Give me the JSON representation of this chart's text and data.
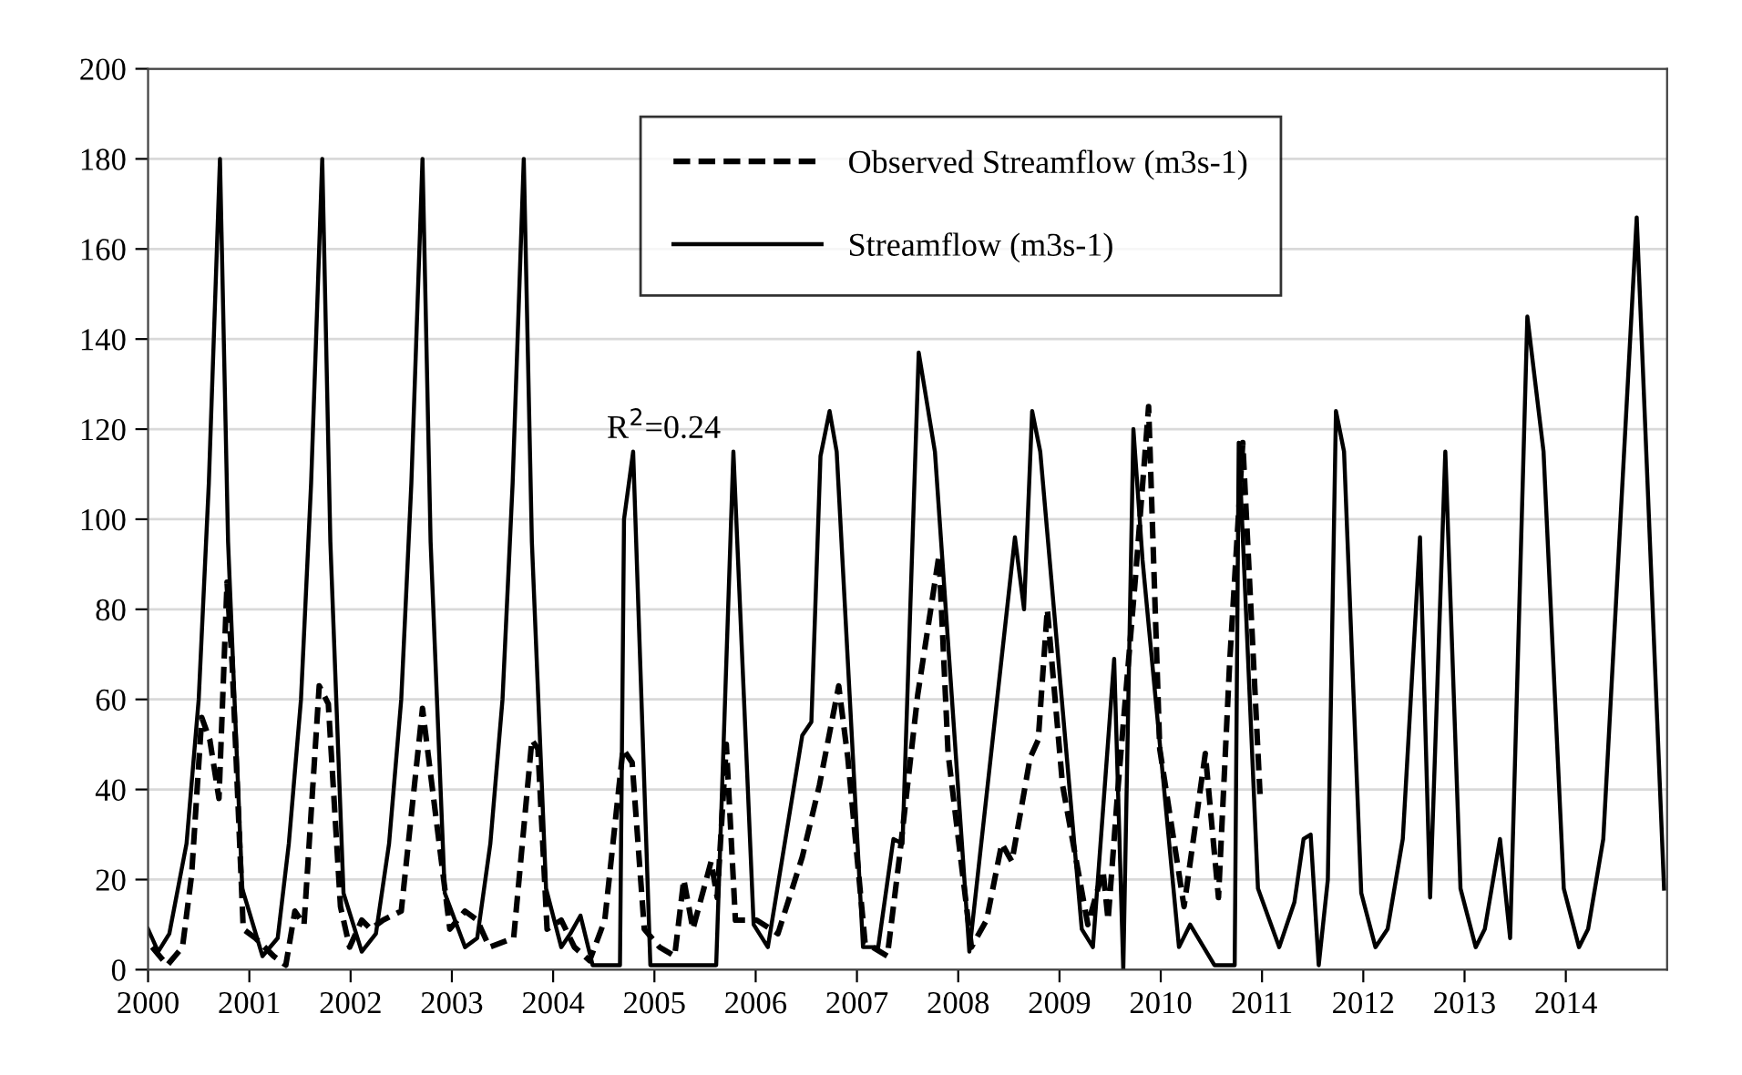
{
  "chart_data": {
    "type": "line",
    "xlim": [
      2000,
      2015
    ],
    "xticks": [
      2000,
      2001,
      2002,
      2003,
      2004,
      2005,
      2006,
      2007,
      2008,
      2009,
      2010,
      2011,
      2012,
      2013,
      2014
    ],
    "ylim": [
      0,
      200
    ],
    "yticks": [
      0,
      20,
      40,
      60,
      80,
      100,
      120,
      140,
      160,
      180,
      200
    ],
    "grid": "y",
    "legend": "top",
    "marker": "none",
    "annotations": [
      "R$^{2}$=0.24"
    ],
    "series": [
      {
        "name": "Observed Streamflow (m3s-1)",
        "color": "#000000",
        "line_style": "dashed",
        "x": [
          2000.04,
          2000.19,
          2000.34,
          2000.43,
          2000.53,
          2000.61,
          2000.7,
          2000.78,
          2000.83,
          2000.94,
          2001.06,
          2001.24,
          2001.36,
          2001.45,
          2001.54,
          2001.69,
          2001.78,
          2001.9,
          2001.99,
          2002.11,
          2002.2,
          2002.32,
          2002.5,
          2002.71,
          2002.77,
          2002.98,
          2003.13,
          2003.25,
          2003.37,
          2003.61,
          2003.79,
          2003.85,
          2003.94,
          2004.08,
          2004.21,
          2004.36,
          2004.51,
          2004.69,
          2004.78,
          2004.9,
          2005.05,
          2005.2,
          2005.29,
          2005.38,
          2005.56,
          2005.62,
          2005.71,
          2005.8,
          2006.01,
          2006.22,
          2006.46,
          2006.63,
          2006.82,
          2006.91,
          2007.08,
          2007.3,
          2007.42,
          2007.6,
          2007.81,
          2007.9,
          2008.13,
          2008.28,
          2008.43,
          2008.53,
          2008.71,
          2008.79,
          2008.88,
          2009.03,
          2009.28,
          2009.43,
          2009.48,
          2009.58,
          2009.75,
          2009.88,
          2009.99,
          2010.23,
          2010.44,
          2010.57,
          2010.68,
          2010.81,
          2010.98
        ],
        "values": [
          5,
          1,
          5,
          21,
          56,
          51,
          38,
          86,
          68,
          9,
          7,
          3,
          1,
          13,
          10,
          63,
          59,
          14,
          5,
          11,
          9,
          11,
          13,
          58,
          47,
          9,
          13,
          11,
          5,
          7,
          51,
          49,
          9,
          11,
          5,
          2,
          11,
          49,
          46,
          9,
          5,
          3,
          20,
          9,
          24,
          16,
          50,
          11,
          11,
          8,
          25,
          41,
          63,
          47,
          6,
          3,
          25,
          61,
          92,
          48,
          5,
          11,
          28,
          24,
          47,
          51,
          80,
          41,
          10,
          22,
          11,
          41,
          87,
          125,
          49,
          14,
          48,
          16,
          68,
          117,
          39
        ]
      },
      {
        "name": "Streamflow (m3s-1)",
        "color": "#000000",
        "line_style": "solid",
        "x": [
          2000.0,
          2000.1,
          2000.21,
          2000.38,
          2000.5,
          2000.6,
          2000.71,
          2000.79,
          2000.93,
          2001.13,
          2001.28,
          2001.39,
          2001.51,
          2001.61,
          2001.72,
          2001.8,
          2001.93,
          2002.11,
          2002.25,
          2002.38,
          2002.5,
          2002.6,
          2002.71,
          2002.79,
          2002.93,
          2003.13,
          2003.25,
          2003.38,
          2003.5,
          2003.6,
          2003.71,
          2003.79,
          2003.93,
          2004.08,
          2004.17,
          2004.27,
          2004.39,
          2004.66,
          2004.7,
          2004.79,
          2004.96,
          2005.61,
          2005.78,
          2005.98,
          2006.12,
          2006.46,
          2006.55,
          2006.64,
          2006.73,
          2006.8,
          2007.06,
          2007.21,
          2007.36,
          2007.45,
          2007.61,
          2007.77,
          2008.11,
          2008.56,
          2008.65,
          2008.73,
          2008.81,
          2009.22,
          2009.33,
          2009.54,
          2009.63,
          2009.73,
          2009.82,
          2010.18,
          2010.29,
          2010.53,
          2010.73,
          2010.77,
          2010.96,
          2011.17,
          2011.32,
          2011.41,
          2011.48,
          2011.56,
          2011.65,
          2011.73,
          2011.81,
          2011.98,
          2012.12,
          2012.24,
          2012.39,
          2012.56,
          2012.66,
          2012.81,
          2012.96,
          2013.11,
          2013.2,
          2013.35,
          2013.45,
          2013.62,
          2013.78,
          2013.98,
          2014.13,
          2014.22,
          2014.37,
          2014.7,
          2014.97
        ],
        "values": [
          9,
          4,
          8,
          28,
          60,
          108,
          180,
          95,
          18,
          3,
          7,
          28,
          60,
          108,
          180,
          95,
          17,
          4,
          8,
          28,
          60,
          108,
          180,
          95,
          17,
          5,
          7,
          28,
          60,
          108,
          180,
          95,
          18,
          5,
          8,
          12,
          1,
          1,
          100,
          115,
          1,
          1,
          115,
          10,
          5,
          52,
          55,
          114,
          124,
          115,
          5,
          5,
          29,
          28,
          137,
          115,
          4,
          96,
          80,
          124,
          115,
          9,
          5,
          69,
          0,
          120,
          91,
          5,
          10,
          1,
          1,
          117,
          18,
          5,
          15,
          29,
          30,
          1,
          20,
          124,
          115,
          17,
          5,
          9,
          29,
          96,
          16,
          115,
          18,
          5,
          9,
          29,
          7,
          145,
          115,
          18,
          5,
          9,
          29,
          167,
          18
        ]
      }
    ]
  }
}
